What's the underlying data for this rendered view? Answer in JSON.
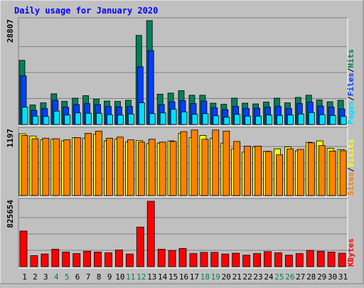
{
  "chart_data": {
    "title": "Daily usage for January 2020",
    "type": "bar",
    "x": [
      "1",
      "2",
      "3",
      "4",
      "5",
      "6",
      "7",
      "8",
      "9",
      "10",
      "11",
      "12",
      "13",
      "14",
      "15",
      "16",
      "17",
      "18",
      "19",
      "20",
      "21",
      "22",
      "23",
      "24",
      "25",
      "26",
      "27",
      "28",
      "29",
      "30",
      "31"
    ],
    "weekend_days": [
      "4",
      "5",
      "11",
      "12",
      "18",
      "19",
      "25",
      "26"
    ],
    "colors": {
      "hits": "#00805c",
      "files": "#0040ff",
      "pages": "#00e0ff",
      "visits": "#ffff00",
      "sites": "#ff8000",
      "kbytes": "#ff0000",
      "title": "#0000ff",
      "weekend_label": "#00805c",
      "weekday_label": "#000000",
      "background": "#c0c0c0",
      "panel": "#c0c0c0",
      "grid": "#808080"
    },
    "panels": [
      {
        "id": "hits-files-pages",
        "max_label": "28807",
        "ymax": 28807,
        "legend": [
          {
            "text": "Pages",
            "series": "pages"
          },
          {
            "text": "/",
            "series": null
          },
          {
            "text": "Files",
            "series": "files"
          },
          {
            "text": "/",
            "series": null
          },
          {
            "text": "Hits",
            "series": "hits"
          }
        ],
        "series": [
          {
            "name": "Hits",
            "key": "hits",
            "values": [
              17800,
              5400,
              6000,
              8500,
              6400,
              7300,
              8000,
              7000,
              6500,
              6400,
              6700,
              24700,
              28807,
              8400,
              8700,
              9400,
              8100,
              8100,
              5900,
              5600,
              7300,
              5900,
              5700,
              6200,
              7300,
              6000,
              7500,
              8100,
              6800,
              6300,
              6700
            ]
          },
          {
            "name": "Files",
            "key": "files",
            "values": [
              13500,
              3900,
              4400,
              6700,
              4800,
              5500,
              5800,
              5500,
              5000,
              4900,
              5000,
              16000,
              20500,
              5500,
              6300,
              6600,
              5800,
              6500,
              4600,
              4100,
              5000,
              4400,
              4500,
              4800,
              5000,
              4400,
              5800,
              6200,
              5100,
              4800,
              4300
            ]
          },
          {
            "name": "Pages",
            "key": "pages",
            "values": [
              4800,
              2300,
              2200,
              3700,
              2600,
              3200,
              3100,
              3100,
              2700,
              2600,
              2900,
              6000,
              3000,
              3200,
              4200,
              3500,
              2800,
              3000,
              2400,
              2000,
              2800,
              2300,
              2300,
              2600,
              2500,
              2600,
              2900,
              3300,
              2700,
              2500,
              2200
            ]
          }
        ]
      },
      {
        "id": "visits-sites",
        "max_label": "1197",
        "ymax": 1197,
        "legend": [
          {
            "text": "Sites",
            "series": "sites"
          },
          {
            "text": "/",
            "series": null
          },
          {
            "text": "Visits",
            "series": "visits"
          }
        ],
        "series": [
          {
            "name": "Visits",
            "key": "visits",
            "values": [
              1130,
              1090,
              1020,
              1030,
              1000,
              1060,
              1050,
              1120,
              1000,
              1030,
              980,
              1010,
              950,
              960,
              1000,
              1140,
              1060,
              1100,
              1050,
              960,
              855,
              795,
              890,
              810,
              855,
              890,
              820,
              975,
              1000,
              865,
              840
            ]
          },
          {
            "name": "Sites",
            "key": "sites",
            "values": [
              1100,
              1040,
              1050,
              1040,
              1020,
              1060,
              1140,
              1180,
              1050,
              1070,
              1020,
              980,
              1030,
              980,
              990,
              1170,
              1200,
              1030,
              1200,
              1180,
              990,
              905,
              905,
              805,
              745,
              855,
              845,
              965,
              915,
              815,
              820
            ]
          }
        ]
      },
      {
        "id": "kbytes",
        "max_label": "825654",
        "ymax": 825654,
        "legend": [
          {
            "text": "KBytes",
            "series": "kbytes"
          }
        ],
        "series": [
          {
            "name": "KBytes",
            "key": "kbytes",
            "values": [
              450000,
              140000,
              160000,
              220000,
              185000,
              165000,
              195000,
              185000,
              175000,
              210000,
              160000,
              500000,
              825654,
              220000,
              205000,
              230000,
              165000,
              180000,
              180000,
              160000,
              170000,
              145000,
              165000,
              190000,
              175000,
              145000,
              165000,
              205000,
              195000,
              185000,
              170000
            ]
          }
        ]
      }
    ]
  }
}
